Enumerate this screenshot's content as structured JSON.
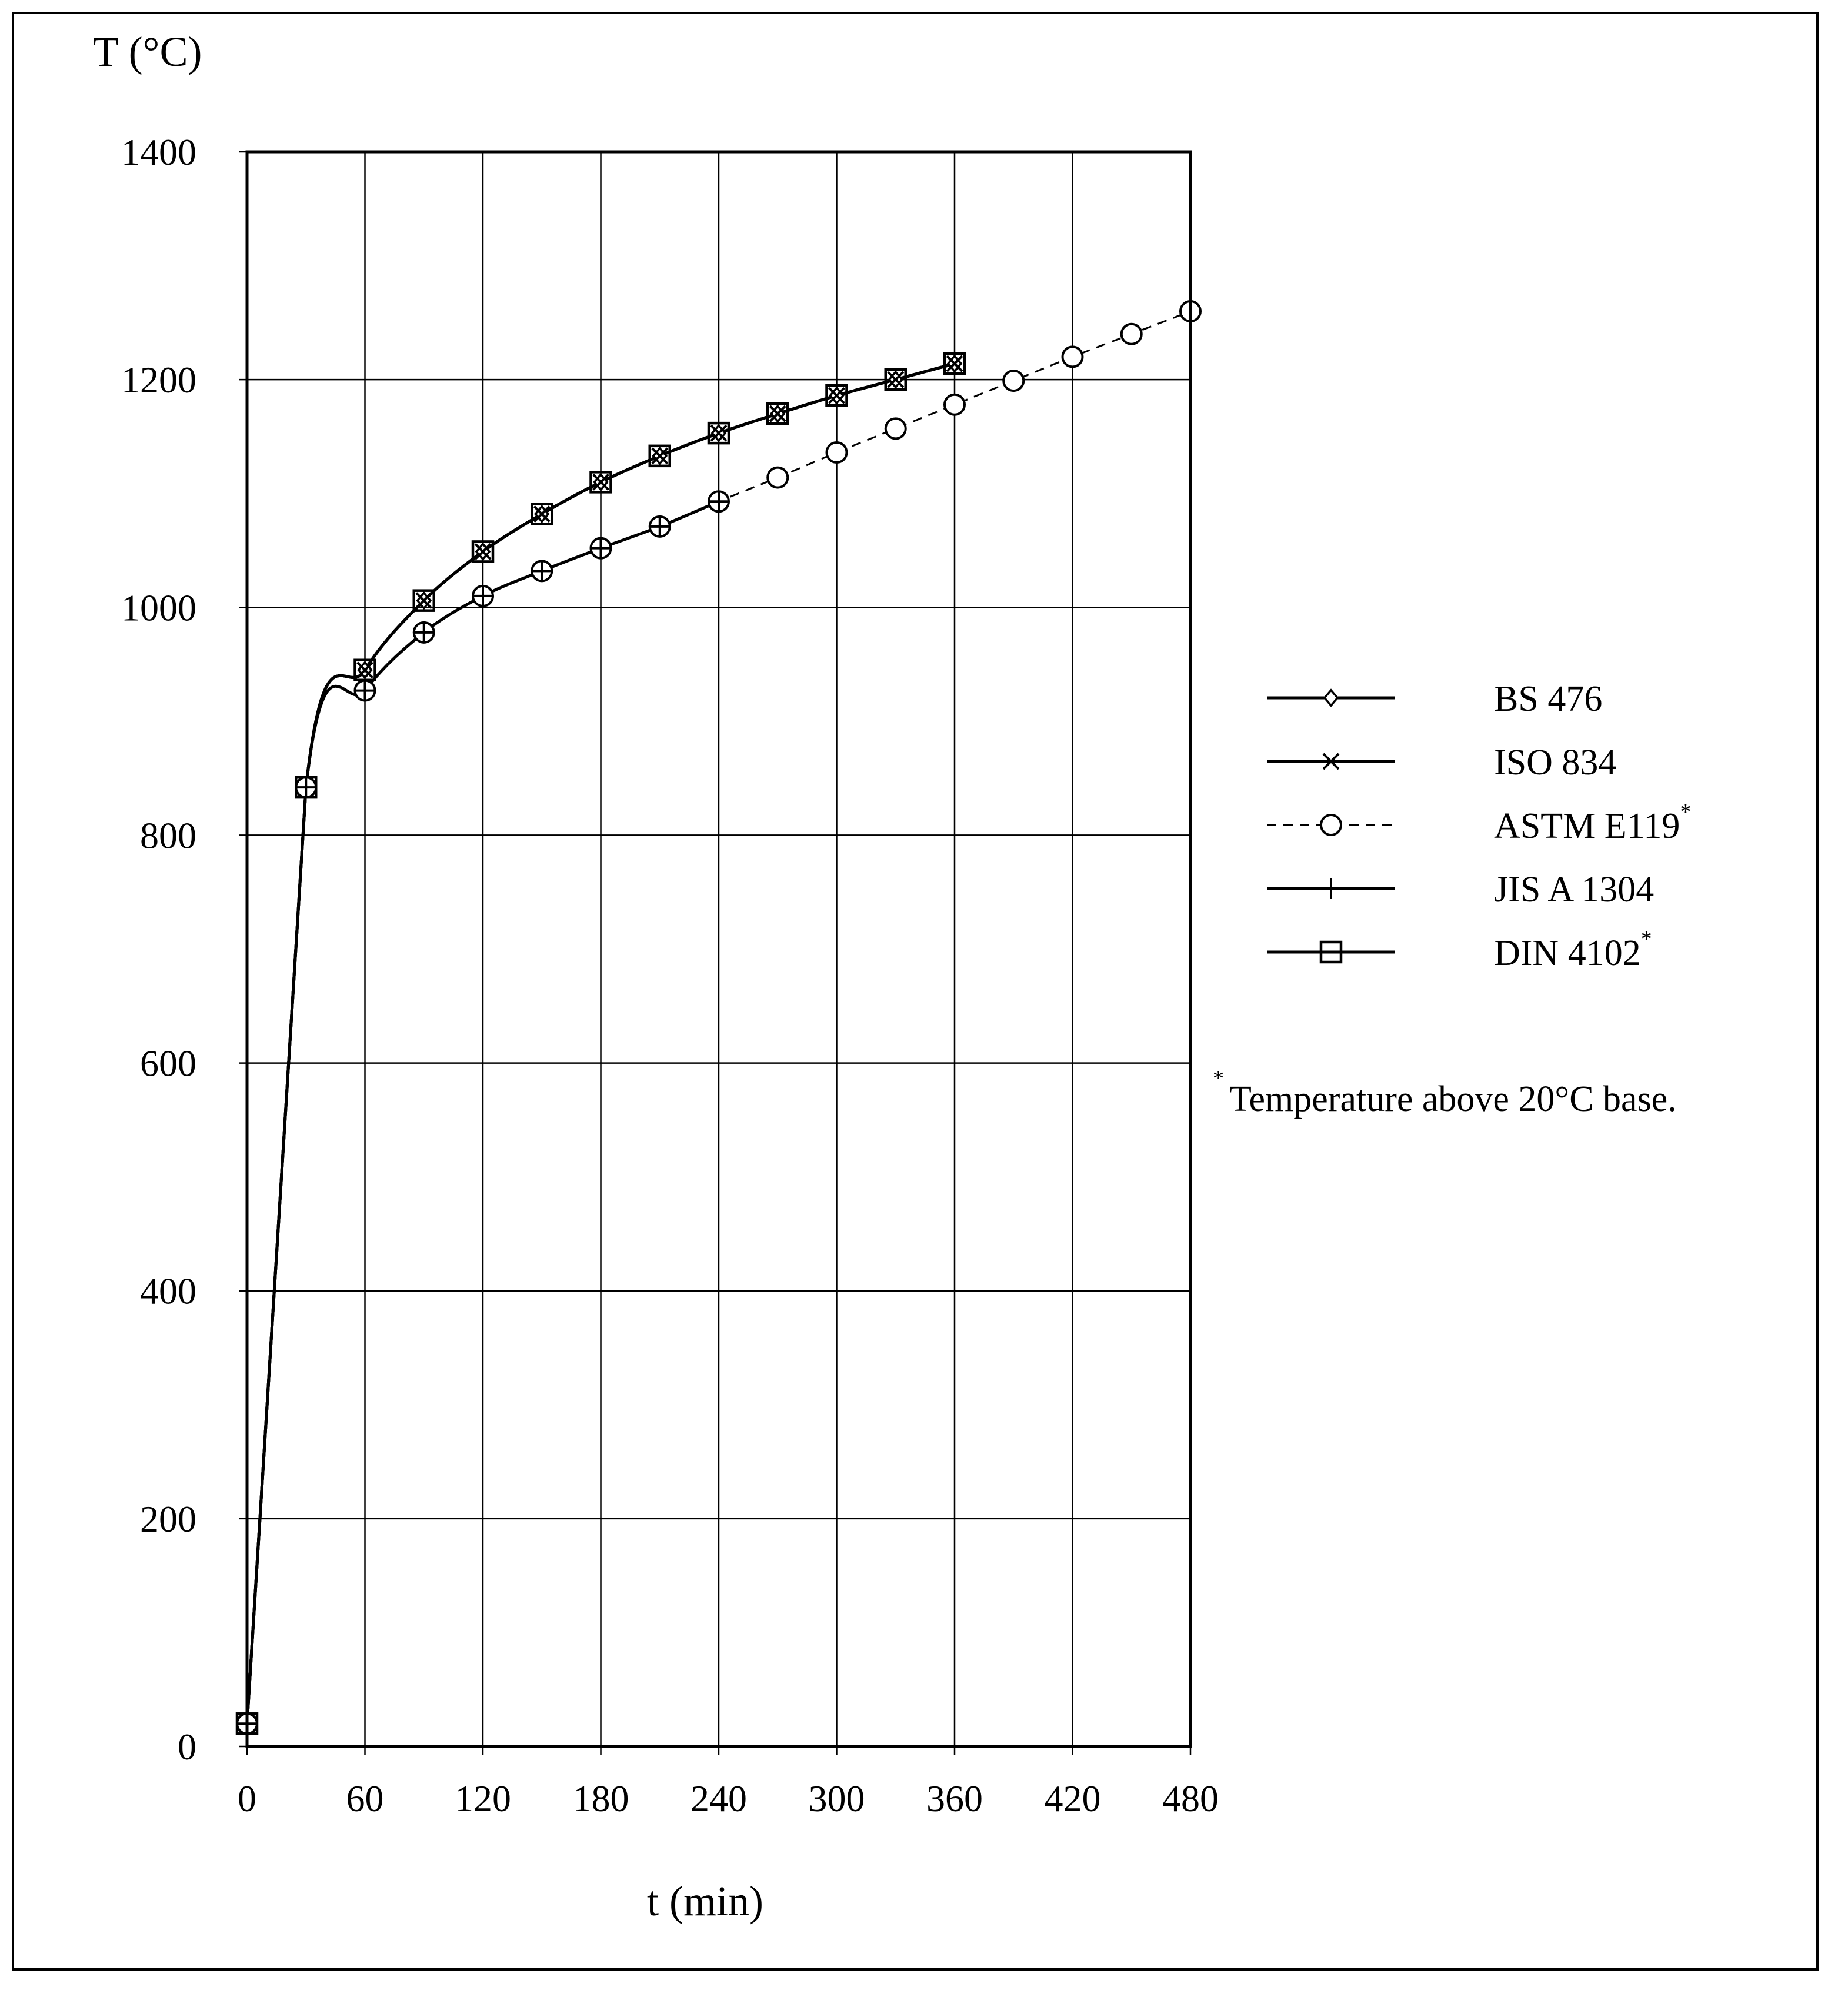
{
  "chart_data": {
    "type": "line",
    "y_axis_title": "T (°C)",
    "x_axis_title": "t (min)",
    "xlim": [
      0,
      480
    ],
    "ylim": [
      0,
      1400
    ],
    "x_ticks": [
      0,
      60,
      120,
      180,
      240,
      300,
      360,
      420,
      480
    ],
    "y_ticks": [
      0,
      200,
      400,
      600,
      800,
      1000,
      1200,
      1400
    ],
    "grid": true,
    "legend_position": "right",
    "series": [
      {
        "name": "BS 476",
        "marker": "diamond",
        "line": "solid",
        "x": [
          0,
          30,
          60,
          90,
          120,
          150,
          180,
          210,
          240,
          270,
          300,
          330,
          360
        ],
        "y": [
          20,
          842,
          945,
          1006,
          1049,
          1082,
          1110,
          1133,
          1153,
          1170,
          1186,
          1200,
          1214
        ]
      },
      {
        "name": "ISO 834",
        "marker": "x",
        "line": "solid",
        "x": [
          0,
          30,
          60,
          90,
          120,
          150,
          180,
          210,
          240,
          270,
          300,
          330,
          360
        ],
        "y": [
          20,
          842,
          945,
          1006,
          1049,
          1082,
          1110,
          1133,
          1153,
          1170,
          1186,
          1200,
          1214
        ]
      },
      {
        "name": "ASTM E119",
        "name_suffix": "*",
        "marker": "circle",
        "line": "dashed",
        "x": [
          0,
          30,
          60,
          90,
          120,
          150,
          180,
          210,
          240,
          270,
          300,
          330,
          360,
          390,
          420,
          450,
          480
        ],
        "y": [
          20,
          842,
          927,
          978,
          1010,
          1032,
          1052,
          1071,
          1093,
          1114,
          1136,
          1157,
          1178,
          1199,
          1220,
          1240,
          1260
        ]
      },
      {
        "name": "JIS A 1304",
        "marker": "plus",
        "line": "solid",
        "x": [
          0,
          30,
          60,
          90,
          120,
          150,
          180,
          210,
          240
        ],
        "y": [
          20,
          842,
          927,
          978,
          1010,
          1032,
          1052,
          1071,
          1093
        ]
      },
      {
        "name": "DIN 4102",
        "name_suffix": "*",
        "marker": "square",
        "line": "solid",
        "x": [
          0,
          30,
          60,
          90,
          120,
          150,
          180,
          210,
          240,
          270,
          300,
          330,
          360
        ],
        "y": [
          20,
          842,
          945,
          1006,
          1049,
          1082,
          1110,
          1133,
          1153,
          1170,
          1186,
          1200,
          1214
        ]
      }
    ],
    "note": {
      "marker": "*",
      "text": "Temperature above 20°C base."
    }
  }
}
